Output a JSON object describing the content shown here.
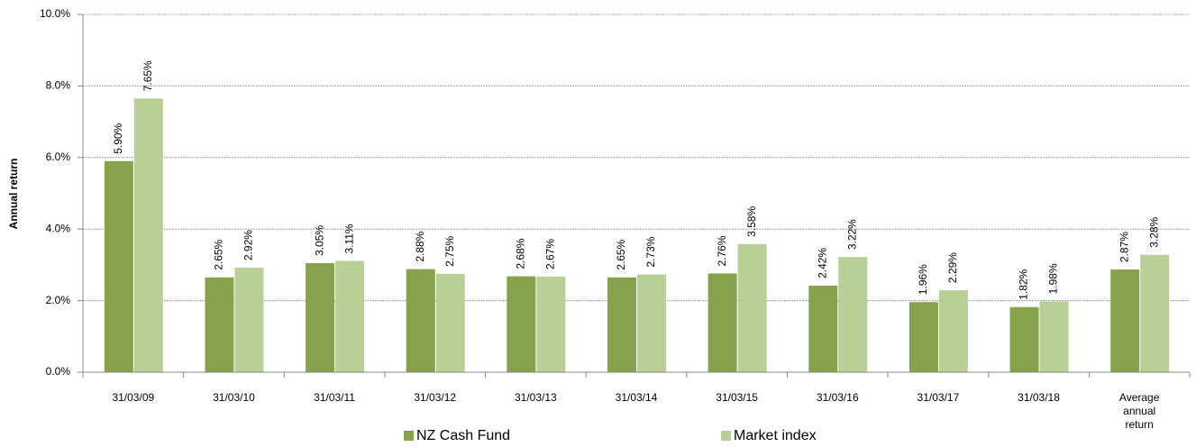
{
  "chart_data": {
    "type": "bar",
    "y_label": "Annual return",
    "categories": [
      "31/03/09",
      "31/03/10",
      "31/03/11",
      "31/03/12",
      "31/03/13",
      "31/03/14",
      "31/03/15",
      "31/03/16",
      "31/03/17",
      "31/03/18",
      "Average annual return"
    ],
    "series": [
      {
        "name": "NZ Cash Fund",
        "color": "#86a24a",
        "values": [
          5.9,
          2.65,
          3.05,
          2.88,
          2.68,
          2.65,
          2.76,
          2.42,
          1.96,
          1.82,
          2.87
        ],
        "value_labels": [
          "5.90%",
          "2.65%",
          "3.05%",
          "2.88%",
          "2.68%",
          "2.65%",
          "2.76%",
          "2.42%",
          "1.96%",
          "1.82%",
          "2.87%"
        ]
      },
      {
        "name": "Market index",
        "color": "#b8cf96",
        "values": [
          7.65,
          2.92,
          3.11,
          2.75,
          2.67,
          2.73,
          3.58,
          3.22,
          2.29,
          1.98,
          3.28
        ],
        "value_labels": [
          "7.65%",
          "2.92%",
          "3.11%",
          "2.75%",
          "2.67%",
          "2.73%",
          "3.58%",
          "3.22%",
          "2.29%",
          "1.98%",
          "3.28%"
        ]
      }
    ],
    "ylim": [
      0,
      10
    ],
    "yticks": [
      {
        "value": 0,
        "label": "0.0%"
      },
      {
        "value": 2,
        "label": "2.0%"
      },
      {
        "value": 4,
        "label": "4.0%"
      },
      {
        "value": 6,
        "label": "6.0%"
      },
      {
        "value": 8,
        "label": "8.0%"
      },
      {
        "value": 10,
        "label": "10.0%"
      }
    ],
    "grid": true,
    "legend": "bottom"
  }
}
